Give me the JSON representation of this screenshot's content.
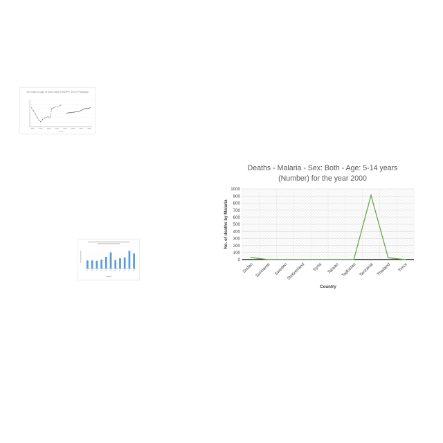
{
  "charts": [
    {
      "chart_data": {
        "type": "line",
        "title": "Sex ratio by age (5 year olds) (UNWPP, 2017) Paraguay",
        "xlabel": "Years",
        "ylabel": "",
        "x": [
          1952,
          1954,
          1956,
          1958,
          1960,
          1962,
          1964,
          1966,
          1968,
          1970,
          1972,
          1974,
          1976,
          1978,
          1980,
          1982,
          1984,
          1986,
          1988,
          1990,
          1992,
          1994,
          1996,
          1998,
          2000,
          2002,
          2004,
          2006,
          2008,
          2010,
          2012,
          2014,
          2016
        ],
        "series": [
          {
            "values": [
              104.2,
              103.6,
              102.9,
              102.1,
              101.4,
              101.1,
              101.6,
              101.9,
              102.1,
              102.2,
              102.0,
              104.0,
              104.2,
              104.4,
              104.4,
              104.6,
              104.8,
              null,
              null,
              103.0,
              103.1,
              103.1,
              103.2,
              103.2,
              103.3,
              103.3,
              103.4,
              103.6,
              103.8,
              104.0,
              104.1,
              104.1,
              104.2
            ]
          }
        ],
        "grid": true,
        "color": "#555555"
      }
    },
    {
      "chart_data": {
        "type": "bar",
        "title": "",
        "xlabel": "",
        "ylabel": "",
        "categories": [
          "1",
          "2",
          "3",
          "4",
          "5",
          "6",
          "7",
          "8",
          "9",
          "10",
          "11"
        ],
        "values": [
          44,
          44,
          42,
          48,
          64,
          88,
          46,
          56,
          60,
          96,
          82
        ],
        "ylim": [
          0,
          120
        ],
        "grid": true,
        "color": "#5b9bd5"
      }
    },
    {
      "chart_data": {
        "type": "line",
        "title": [
          "Deaths - Malaria - Sex: Both - Age: 5-14 years",
          "(Number) for the year 2000"
        ],
        "xlabel": "Country",
        "ylabel": "No. of deaths by Malaria",
        "categories": [
          "Sudan",
          "Suriname",
          "Sweden",
          "Switzerland",
          "Syria",
          "Taiwan",
          "Tajikistan",
          "Tanzania",
          "Thailand",
          "Timor"
        ],
        "series": [
          {
            "values": [
              30,
              0,
              0,
              0,
              0,
              0,
              2,
              910,
              25,
              0
            ]
          }
        ],
        "ylim": [
          0,
          1000
        ],
        "yticks": [
          "0",
          "100",
          "200",
          "300",
          "400",
          "500",
          "600",
          "700",
          "800",
          "900",
          "1000"
        ],
        "grid": true,
        "color": "#6aa84f"
      }
    }
  ]
}
